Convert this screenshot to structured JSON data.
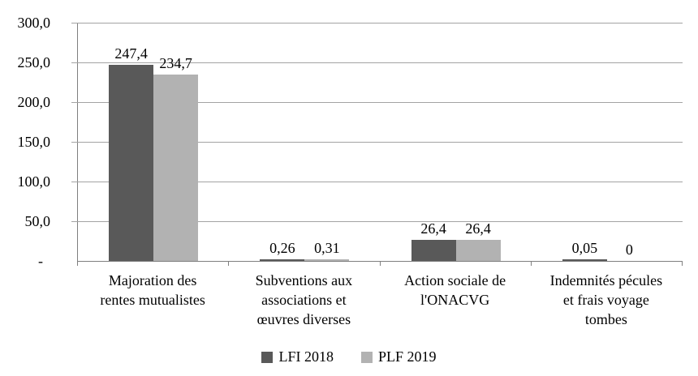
{
  "chart_data": {
    "type": "bar",
    "title": "",
    "xlabel": "",
    "ylabel": "",
    "categories": [
      "Majoration des rentes mutualistes",
      "Subventions aux associations et œuvres diverses",
      "Action sociale de l'ONACVG",
      "Indemnités pécules et frais voyage tombes"
    ],
    "category_label_lines": [
      [
        "Majoration des",
        "rentes mutualistes"
      ],
      [
        "Subventions aux",
        "associations et",
        "œuvres diverses"
      ],
      [
        "Action sociale de",
        "l'ONACVG"
      ],
      [
        "Indemnités pécules",
        "et frais voyage",
        "tombes"
      ]
    ],
    "series": [
      {
        "name": "LFI 2018",
        "color": "#595959",
        "values": [
          247.4,
          0.26,
          26.4,
          0.05
        ],
        "value_labels": [
          "247,4",
          "0,26",
          "26,4",
          "0,05"
        ]
      },
      {
        "name": "PLF 2019",
        "color": "#b2b2b2",
        "values": [
          234.7,
          0.31,
          26.4,
          0
        ],
        "value_labels": [
          "234,7",
          "0,31",
          "26,4",
          "0"
        ]
      }
    ],
    "ylim": [
      0,
      300
    ],
    "ytick_interval": 50,
    "ytick_labels_top_down": [
      "300,0",
      "250,0",
      "200,0",
      "150,0",
      "100,0",
      "50,0",
      "-"
    ],
    "grid": true,
    "legend_position": "bottom"
  },
  "colors": {
    "axis": "#7f7f7f",
    "gridline": "#a3a3a3",
    "background": "#ffffff",
    "text": "#000000"
  }
}
